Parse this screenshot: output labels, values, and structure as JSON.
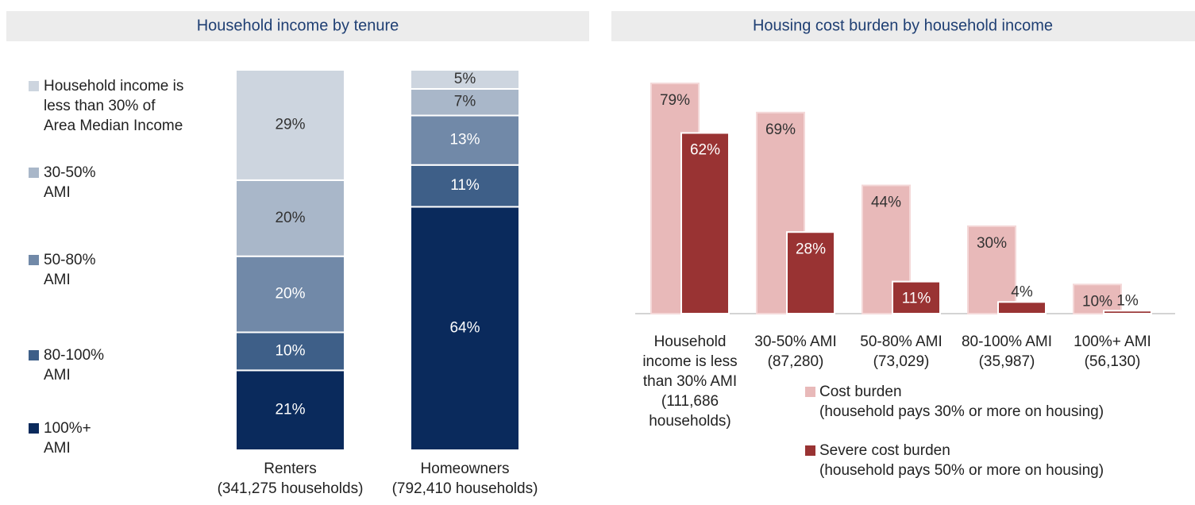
{
  "chart_data": [
    {
      "type": "bar",
      "stacked": true,
      "title": "Household income by tenure",
      "categories": [
        "Renters\n(341,275 households)",
        "Homeowners\n(792,410 households)"
      ],
      "series": [
        {
          "name": "Household income is\nless than 30% of\nArea Median Income",
          "color": "#cdd5df",
          "values": [
            29,
            5
          ],
          "value_labels": [
            "29%",
            "5%"
          ]
        },
        {
          "name": "30-50%\nAMI",
          "color": "#a9b7c9",
          "values": [
            20,
            7
          ],
          "value_labels": [
            "20%",
            "7%"
          ]
        },
        {
          "name": "50-80%\nAMI",
          "color": "#7189a8",
          "values": [
            20,
            13
          ],
          "value_labels": [
            "20%",
            "13%"
          ]
        },
        {
          "name": "80-100%\nAMI",
          "color": "#3e5f88",
          "values": [
            10,
            11
          ],
          "value_labels": [
            "10%",
            "11%"
          ]
        },
        {
          "name": "100%+\nAMI",
          "color": "#0a2a5c",
          "values": [
            21,
            64
          ],
          "value_labels": [
            "21%",
            "64%"
          ]
        }
      ]
    },
    {
      "type": "bar",
      "stacked": false,
      "title": "Housing cost burden by household income",
      "categories": [
        "Household\nincome is less\nthan 30% AMI\n(111,686\nhouseholds)",
        "30-50% AMI\n(87,280)",
        "50-80% AMI\n(73,029)",
        "80-100% AMI\n(35,987)",
        "100%+ AMI\n(56,130)"
      ],
      "series": [
        {
          "name": "Cost burden\n(household pays 30% or more on housing)",
          "color": "#e8b9b9",
          "values": [
            79,
            69,
            44,
            30,
            10
          ],
          "value_labels": [
            "79%",
            "69%",
            "44%",
            "30%",
            "10%"
          ]
        },
        {
          "name": "Severe cost burden\n(household pays 50% or more on housing)",
          "color": "#993333",
          "values": [
            62,
            28,
            11,
            4,
            1
          ],
          "value_labels": [
            "62%",
            "28%",
            "11%",
            "4%",
            "1%"
          ]
        }
      ]
    }
  ]
}
